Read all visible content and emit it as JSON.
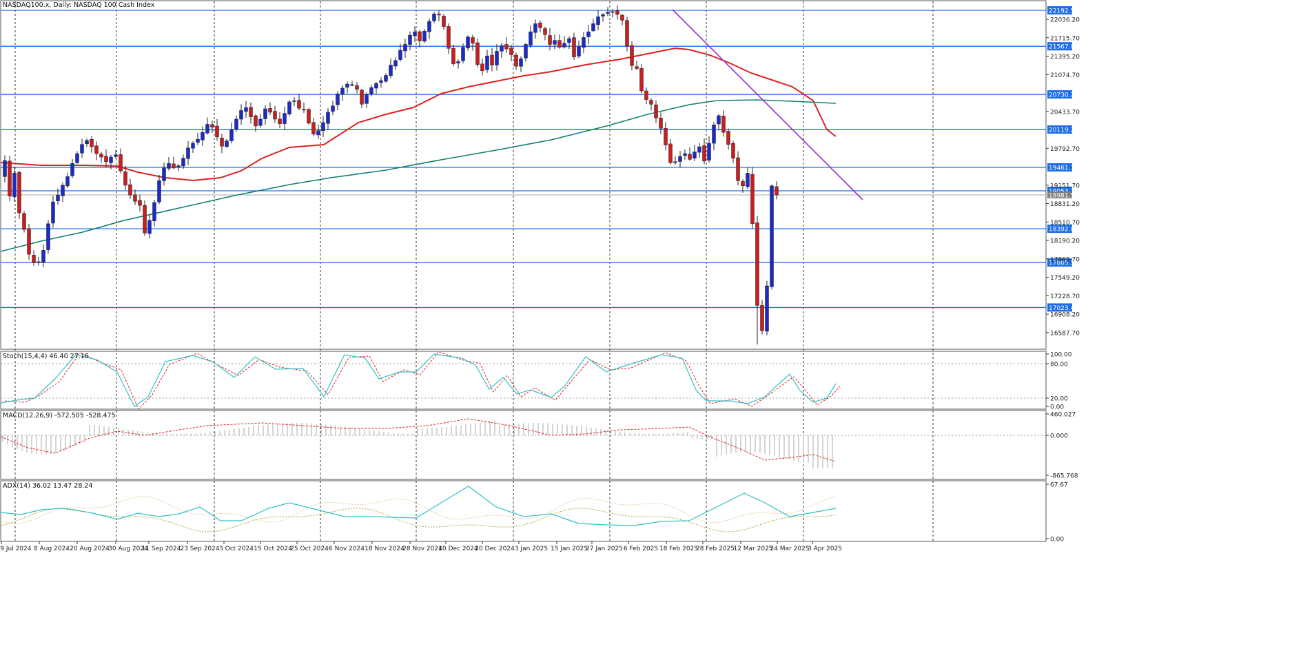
{
  "main": {
    "title": "NASDAQ100.x, Daily:  NASDAQ 100 Cash Index",
    "price_ticks": [
      "22036.20",
      "21715.70",
      "21395.20",
      "21074.70",
      "20433.70",
      "19792.70",
      "19151.70",
      "18831.20",
      "18510.70",
      "18190.20",
      "17869.70",
      "17549.20",
      "17228.70",
      "16908.20",
      "16587.70"
    ],
    "levels": [
      {
        "label": "22192.51",
        "value": 22192.51
      },
      {
        "label": "21567.02",
        "value": 21567.02
      },
      {
        "label": "20730.21",
        "value": 20730.21
      },
      {
        "label": "20119.20",
        "value": 20119.2
      },
      {
        "label": "19461.10",
        "value": 19461.1
      },
      {
        "label": "19053.27",
        "value": 19053.27
      },
      {
        "label": "18392.88",
        "value": 18392.88
      },
      {
        "label": "17805.57",
        "value": 17805.57
      },
      {
        "label": "17023.43",
        "value": 17023.43
      }
    ],
    "current_price": {
      "label": "18981.53",
      "value": 18981.53
    }
  },
  "stoch": {
    "title": "Stoch(15,4,4) 46.40 27.16",
    "ticks": [
      "100.00",
      "80.00",
      "20.00",
      "0.00"
    ]
  },
  "macd": {
    "title": "MACD(12,26,9) -572.505 -528.475",
    "ticks": [
      "460.027",
      "0.000",
      "-865.768"
    ]
  },
  "adx": {
    "title": "ADX(14) 36.02 13.47 28.24",
    "ticks": [
      "67.67",
      "0.00"
    ]
  },
  "dates": [
    "29 Jul 2024",
    "8 Aug 2024",
    "20 Aug 2024",
    "30 Aug 2024",
    "11 Sep 2024",
    "23 Sep 2024",
    "3 Oct 2024",
    "15 Oct 2024",
    "25 Oct 2024",
    "6 Nov 2024",
    "18 Nov 2024",
    "28 Nov 2024",
    "10 Dec 2024",
    "20 Dec 2024",
    "3 Jan 2025",
    "15 Jan 2025",
    "27 Jan 2025",
    "6 Feb 2025",
    "18 Feb 2025",
    "28 Feb 2025",
    "12 Mar 2025",
    "24 Mar 2025",
    "3 Apr 2025"
  ],
  "colors": {
    "bull": "#1c2ac8",
    "bear": "#c81e1e",
    "ma_fast": "#e02020",
    "ma_slow": "#108070",
    "trendline": "#9a30c8",
    "level": "#1e6ee6",
    "stoch_main": "#30c0c8",
    "stoch_signal": "#e02020",
    "macd_hist": "#a8a8a8",
    "macd_signal": "#e02020",
    "adx_main": "#30c0c8",
    "adx_plus": "#e8c8a0",
    "adx_minus": "#a8a838"
  }
}
